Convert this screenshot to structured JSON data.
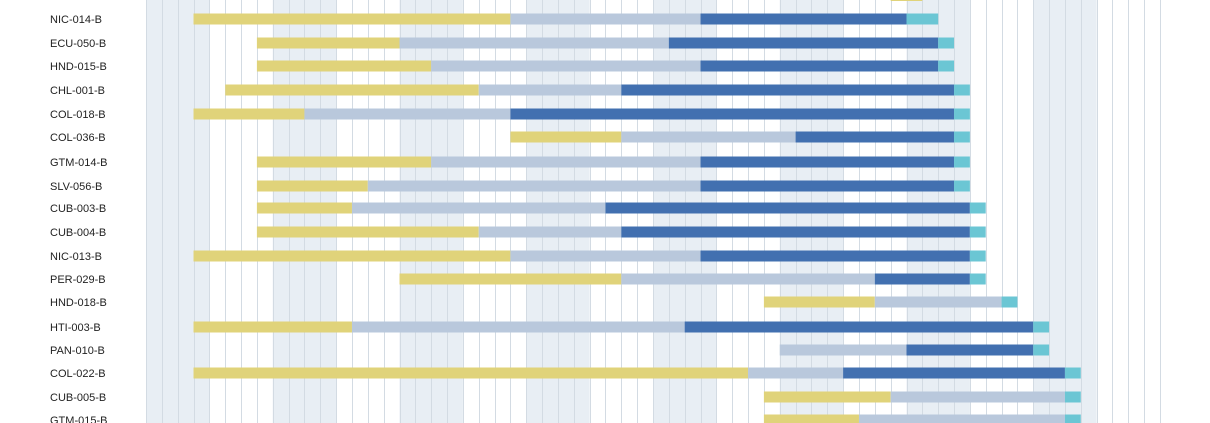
{
  "colors": {
    "background": "#ffffff",
    "band": "#e8eef4",
    "grid": "#d3dbe3",
    "phase1": "#e0d37a",
    "phase2": "#b9c8dc",
    "phase3": "#4270b0",
    "phase4": "#6bc6d4"
  },
  "chart_data": {
    "type": "gantt",
    "title": "",
    "xlabel": "",
    "ylabel": "",
    "x_unit_note": "columns of the chart grid, counted from the left edge of the plot area",
    "xlim": [
      0,
      64
    ],
    "shaded_columns": [
      [
        0,
        4
      ],
      [
        8,
        12
      ],
      [
        16,
        20
      ],
      [
        24,
        28
      ],
      [
        32,
        36
      ],
      [
        40,
        44
      ],
      [
        48,
        52
      ],
      [
        56,
        60
      ]
    ],
    "phases": [
      "phase1",
      "phase2",
      "phase3",
      "phase4"
    ],
    "rows": [
      {
        "label": "NIC-014-B",
        "segments": [
          [
            3,
            23
          ],
          [
            23,
            35
          ],
          [
            35,
            48
          ],
          [
            48,
            50
          ]
        ]
      },
      {
        "label": "ECU-050-B",
        "segments": [
          [
            7,
            16
          ],
          [
            16,
            33
          ],
          [
            33,
            50
          ],
          [
            50,
            51
          ]
        ]
      },
      {
        "label": "HND-015-B",
        "segments": [
          [
            7,
            18
          ],
          [
            18,
            35
          ],
          [
            35,
            50
          ],
          [
            50,
            51
          ]
        ]
      },
      {
        "label": "CHL-001-B",
        "segments": [
          [
            5,
            21
          ],
          [
            21,
            30
          ],
          [
            30,
            51
          ],
          [
            51,
            52
          ]
        ]
      },
      {
        "label": "COL-018-B",
        "segments": [
          [
            3,
            10
          ],
          [
            10,
            23
          ],
          [
            23,
            51
          ],
          [
            51,
            52
          ]
        ]
      },
      {
        "label": "COL-036-B",
        "segments": [
          [
            23,
            30
          ],
          [
            30,
            41
          ],
          [
            41,
            51
          ],
          [
            51,
            52
          ]
        ]
      },
      {
        "label": "GTM-014-B",
        "segments": [
          [
            7,
            18
          ],
          [
            18,
            35
          ],
          [
            35,
            51
          ],
          [
            51,
            52
          ]
        ]
      },
      {
        "label": "SLV-056-B",
        "segments": [
          [
            7,
            14
          ],
          [
            14,
            35
          ],
          [
            35,
            51
          ],
          [
            51,
            52
          ]
        ]
      },
      {
        "label": "CUB-003-B",
        "segments": [
          [
            7,
            13
          ],
          [
            13,
            29
          ],
          [
            29,
            52
          ],
          [
            52,
            53
          ]
        ]
      },
      {
        "label": "CUB-004-B",
        "segments": [
          [
            7,
            21
          ],
          [
            21,
            30
          ],
          [
            30,
            52
          ],
          [
            52,
            53
          ]
        ]
      },
      {
        "label": "NIC-013-B",
        "segments": [
          [
            3,
            23
          ],
          [
            23,
            35
          ],
          [
            35,
            52
          ],
          [
            52,
            53
          ]
        ]
      },
      {
        "label": "PER-029-B",
        "segments": [
          [
            16,
            30
          ],
          [
            30,
            46
          ],
          [
            46,
            52
          ],
          [
            52,
            53
          ]
        ]
      },
      {
        "label": "HND-018-B",
        "segments": [
          [
            39,
            46
          ],
          [
            46,
            54
          ],
          null,
          [
            54,
            55
          ]
        ]
      },
      {
        "label": "HTI-003-B",
        "segments": [
          [
            3,
            13
          ],
          [
            13,
            34
          ],
          [
            34,
            56
          ],
          [
            56,
            57
          ]
        ]
      },
      {
        "label": "PAN-010-B",
        "segments": [
          null,
          [
            40,
            48
          ],
          [
            48,
            56
          ],
          [
            56,
            57
          ]
        ]
      },
      {
        "label": "COL-022-B",
        "segments": [
          [
            3,
            38
          ],
          [
            38,
            44
          ],
          [
            44,
            58
          ],
          [
            58,
            59
          ]
        ]
      },
      {
        "label": "CUB-005-B",
        "segments": [
          [
            39,
            47
          ],
          [
            47,
            58
          ],
          null,
          [
            58,
            59
          ]
        ]
      },
      {
        "label": "GTM-015-B",
        "segments": [
          [
            39,
            45
          ],
          [
            45,
            58
          ],
          null,
          [
            58,
            59
          ]
        ]
      }
    ],
    "top_clipped_bar": {
      "phase": "phase1",
      "range": [
        47,
        49
      ]
    }
  }
}
